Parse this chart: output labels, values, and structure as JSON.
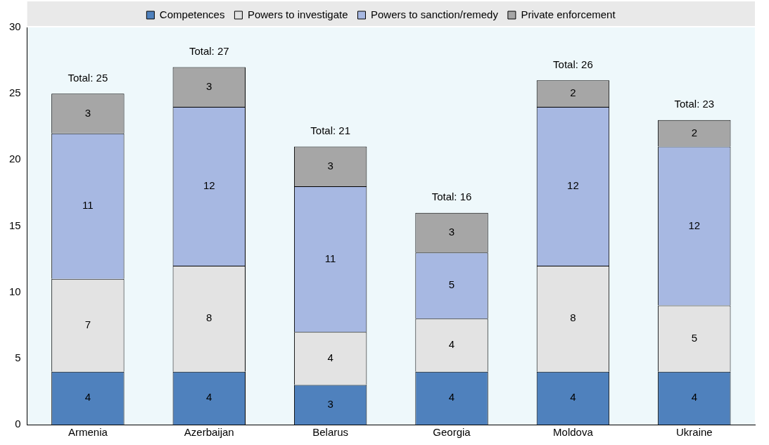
{
  "chart_data": {
    "type": "bar",
    "stacked": true,
    "categories": [
      "Armenia",
      "Azerbaijan",
      "Belarus",
      "Georgia",
      "Moldova",
      "Ukraine"
    ],
    "series": [
      {
        "name": "Competences",
        "color": "#4f81bd",
        "values": [
          4,
          4,
          3,
          4,
          4,
          4
        ]
      },
      {
        "name": "Powers to investigate",
        "color": "#e3e3e3",
        "values": [
          7,
          8,
          4,
          4,
          8,
          5
        ]
      },
      {
        "name": "Powers to sanction/remedy",
        "color": "#a7b8e2",
        "values": [
          11,
          12,
          11,
          5,
          12,
          12
        ]
      },
      {
        "name": "Private enforcement",
        "color": "#a6a6a6",
        "values": [
          3,
          3,
          3,
          3,
          2,
          2
        ]
      }
    ],
    "ylim": [
      0,
      30
    ],
    "yticks": [
      0,
      5,
      10,
      15,
      20,
      25,
      30
    ],
    "data_labels": true,
    "totals": [
      "Total: 25",
      "Total: 27",
      "Total: 21",
      "Total: 16",
      "Total: 26",
      "Total: 23"
    ],
    "legend": "top",
    "grid": false
  }
}
